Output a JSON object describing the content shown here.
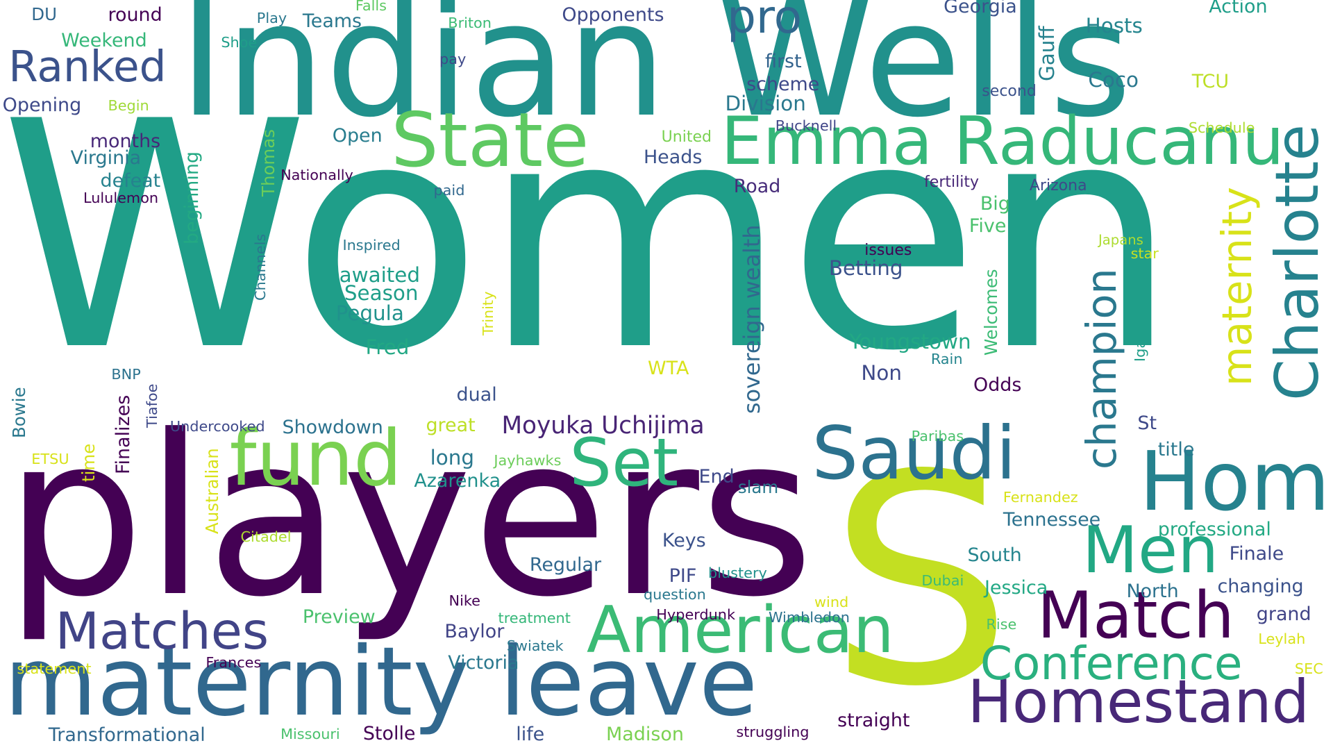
{
  "colors": {
    "background": "#ffffff",
    "palette": [
      "#440154",
      "#482878",
      "#3e4989",
      "#31688e",
      "#26828e",
      "#1f9e89",
      "#35b779",
      "#6ece58",
      "#b5de2b",
      "#fde725"
    ]
  },
  "words": [
    {
      "text": "Women",
      "color": "#1f9e89"
    },
    {
      "text": "players",
      "color": "#440154"
    },
    {
      "text": "Indian Wells",
      "color": "#21918c"
    },
    {
      "text": "S",
      "color": "#c3df22"
    },
    {
      "text": "maternity leave",
      "color": "#31688e"
    },
    {
      "text": "State",
      "color": "#5ec962"
    },
    {
      "text": "Emma Raducanu",
      "color": "#35b779"
    },
    {
      "text": "fund",
      "color": "#7ad151"
    },
    {
      "text": "Set",
      "color": "#2fb47c"
    },
    {
      "text": "Saudi",
      "color": "#2c728e"
    },
    {
      "text": "Home",
      "color": "#26828e"
    },
    {
      "text": "Charlotte",
      "color": "#26828e"
    },
    {
      "text": "Men",
      "color": "#22a884"
    },
    {
      "text": "American",
      "color": "#3bbb75"
    },
    {
      "text": "Match",
      "color": "#440154"
    },
    {
      "text": "Homestand",
      "color": "#482878"
    },
    {
      "text": "Conference",
      "color": "#2ab07f"
    },
    {
      "text": "Matches",
      "color": "#414487"
    },
    {
      "text": "champion",
      "color": "#2a788e"
    },
    {
      "text": "maternity",
      "color": "#d8e219"
    },
    {
      "text": "Ranked",
      "color": "#3b528b"
    },
    {
      "text": "pro",
      "color": "#31688e"
    },
    {
      "text": "Moyuka Uchijima",
      "color": "#482475"
    },
    {
      "text": "sovereign wealth",
      "color": "#31688e"
    },
    {
      "text": "Georgia",
      "color": "#3b528b"
    },
    {
      "text": "Action",
      "color": "#1f9e89"
    },
    {
      "text": "Hosts",
      "color": "#25858e"
    },
    {
      "text": "Coco",
      "color": "#2a788e"
    },
    {
      "text": "TCU",
      "color": "#bddf26"
    },
    {
      "text": "Gauff",
      "color": "#26828e"
    },
    {
      "text": "second",
      "color": "#3b528b"
    },
    {
      "text": "Schedule",
      "color": "#addc30"
    },
    {
      "text": "Opponents",
      "color": "#3e4989"
    },
    {
      "text": "first",
      "color": "#33638d"
    },
    {
      "text": "scheme",
      "color": "#3e4989"
    },
    {
      "text": "Division",
      "color": "#2a788e"
    },
    {
      "text": "Bucknell",
      "color": "#404688"
    },
    {
      "text": "United",
      "color": "#7ad151"
    },
    {
      "text": "Heads",
      "color": "#3b528b"
    },
    {
      "text": "Road",
      "color": "#472c7a"
    },
    {
      "text": "fertility",
      "color": "#482878"
    },
    {
      "text": "Arizona",
      "color": "#3e4989"
    },
    {
      "text": "Big",
      "color": "#4ac16d"
    },
    {
      "text": "Five",
      "color": "#4ac16d"
    },
    {
      "text": "issues",
      "color": "#440154"
    },
    {
      "text": "Betting",
      "color": "#3b528b"
    },
    {
      "text": "Japans",
      "color": "#addc30"
    },
    {
      "text": "star",
      "color": "#c8e020"
    },
    {
      "text": "DU",
      "color": "#31688e"
    },
    {
      "text": "round",
      "color": "#440154"
    },
    {
      "text": "Play",
      "color": "#2a788e"
    },
    {
      "text": "Teams",
      "color": "#2a788e"
    },
    {
      "text": "Falls",
      "color": "#5ec962"
    },
    {
      "text": "Briton",
      "color": "#3bbb75"
    },
    {
      "text": "Weekend",
      "color": "#35b779"
    },
    {
      "text": "Shoe",
      "color": "#1f9e89"
    },
    {
      "text": "pay",
      "color": "#3e4989"
    },
    {
      "text": "Opening",
      "color": "#3e4989"
    },
    {
      "text": "Begin",
      "color": "#a0da39"
    },
    {
      "text": "months",
      "color": "#482878"
    },
    {
      "text": "Virginia",
      "color": "#2a788e"
    },
    {
      "text": "defeat",
      "color": "#26828e"
    },
    {
      "text": "Lululemon",
      "color": "#440154"
    },
    {
      "text": "Nationally",
      "color": "#440154"
    },
    {
      "text": "paid",
      "color": "#31688e"
    },
    {
      "text": "Thomas",
      "color": "#6ccd5a"
    },
    {
      "text": "beginning",
      "color": "#23a983"
    },
    {
      "text": "Open",
      "color": "#287d8e"
    },
    {
      "text": "Channels",
      "color": "#2a788e"
    },
    {
      "text": "Inspired",
      "color": "#2a788e"
    },
    {
      "text": "awaited",
      "color": "#1f9e89"
    },
    {
      "text": "Season",
      "color": "#1f9e89"
    },
    {
      "text": "Pegula",
      "color": "#20928c"
    },
    {
      "text": "Fred",
      "color": "#22a884"
    },
    {
      "text": "Trinity",
      "color": "#d8e219"
    },
    {
      "text": "Youngstown",
      "color": "#22a884"
    },
    {
      "text": "Welcomes",
      "color": "#3bbb75"
    },
    {
      "text": "Rain",
      "color": "#25858e"
    },
    {
      "text": "Non",
      "color": "#3e4989"
    },
    {
      "text": "Odds",
      "color": "#440154"
    },
    {
      "text": "Iga",
      "color": "#1f9e89"
    },
    {
      "text": "WTA",
      "color": "#d8e219"
    },
    {
      "text": "BNP",
      "color": "#2c728e"
    },
    {
      "text": "Bowie",
      "color": "#2a788e"
    },
    {
      "text": "Tiafoe",
      "color": "#3e4989"
    },
    {
      "text": "Finalizes",
      "color": "#440154"
    },
    {
      "text": "Undercooked",
      "color": "#3e4989"
    },
    {
      "text": "Showdown",
      "color": "#2c728e"
    },
    {
      "text": "dual",
      "color": "#3b528b"
    },
    {
      "text": "great",
      "color": "#bddf26"
    },
    {
      "text": "ETSU",
      "color": "#d8e219"
    },
    {
      "text": "time",
      "color": "#d8e219"
    },
    {
      "text": "Australian",
      "color": "#d8e219"
    },
    {
      "text": "long",
      "color": "#2a788e"
    },
    {
      "text": "Jayhawks",
      "color": "#6ccd5a"
    },
    {
      "text": "Azarenka",
      "color": "#21918c"
    },
    {
      "text": "End",
      "color": "#3e4989"
    },
    {
      "text": "slam",
      "color": "#2a788e"
    },
    {
      "text": "Paribas",
      "color": "#4ac16d"
    },
    {
      "text": "St",
      "color": "#3e4989"
    },
    {
      "text": "title",
      "color": "#2a788e"
    },
    {
      "text": "Fernandez",
      "color": "#d8e219"
    },
    {
      "text": "Tennessee",
      "color": "#2c728e"
    },
    {
      "text": "professional",
      "color": "#23a983"
    },
    {
      "text": "Citadel",
      "color": "#addc30"
    },
    {
      "text": "Keys",
      "color": "#3b528b"
    },
    {
      "text": "Regular",
      "color": "#31688e"
    },
    {
      "text": "PIF",
      "color": "#3e4989"
    },
    {
      "text": "blustery",
      "color": "#21918c"
    },
    {
      "text": "question",
      "color": "#2a788e"
    },
    {
      "text": "South",
      "color": "#25858e"
    },
    {
      "text": "Finale",
      "color": "#3e4989"
    },
    {
      "text": "Dubai",
      "color": "#3bbb75"
    },
    {
      "text": "Jessica",
      "color": "#22a884"
    },
    {
      "text": "North",
      "color": "#2c728e"
    },
    {
      "text": "changing",
      "color": "#3b528b"
    },
    {
      "text": "wind",
      "color": "#d8e219"
    },
    {
      "text": "grand",
      "color": "#414487"
    },
    {
      "text": "Leylah",
      "color": "#d8e219"
    },
    {
      "text": "Nike",
      "color": "#440154"
    },
    {
      "text": "treatment",
      "color": "#35b779"
    },
    {
      "text": "Hyperdunk",
      "color": "#440154"
    },
    {
      "text": "Wimbledon",
      "color": "#2c728e"
    },
    {
      "text": "Rise",
      "color": "#4ac16d"
    },
    {
      "text": "Preview",
      "color": "#4ac16d"
    },
    {
      "text": "Baylor",
      "color": "#414487"
    },
    {
      "text": "Swiatek",
      "color": "#2a788e"
    },
    {
      "text": "Victoria",
      "color": "#2a788e"
    },
    {
      "text": "statement",
      "color": "#d8e219"
    },
    {
      "text": "Frances",
      "color": "#440154"
    },
    {
      "text": "SEC",
      "color": "#d8e219"
    },
    {
      "text": "Transformational",
      "color": "#31688e"
    },
    {
      "text": "Missouri",
      "color": "#4ac16d"
    },
    {
      "text": "Stolle",
      "color": "#440154"
    },
    {
      "text": "life",
      "color": "#3b528b"
    },
    {
      "text": "Madison",
      "color": "#7ad151"
    },
    {
      "text": "struggling",
      "color": "#440154"
    },
    {
      "text": "straight",
      "color": "#440154"
    }
  ]
}
